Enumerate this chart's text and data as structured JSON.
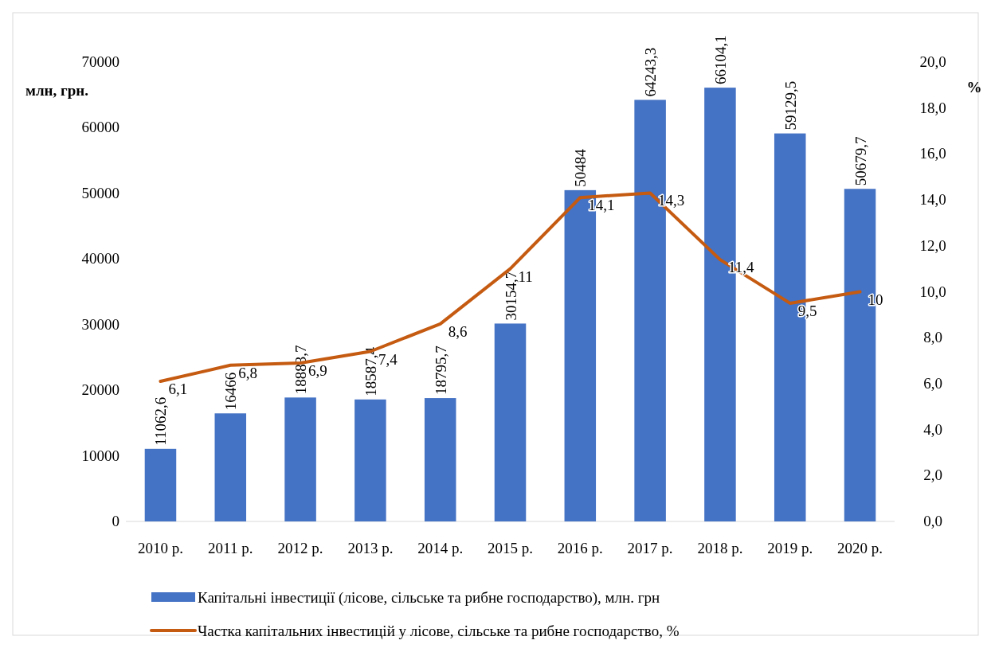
{
  "chart_data": {
    "type": "bar",
    "ylabel": "млн, грн.",
    "y2label": "%",
    "categories": [
      "2010 р.",
      "2011 р.",
      "2012 р.",
      "2013 р.",
      "2014 р.",
      "2015 р.",
      "2016 р.",
      "2017 р.",
      "2018 р.",
      "2019 р.",
      "2020 р."
    ],
    "series": [
      {
        "name": "Капітальні інвестиції (лісове, сільське та рибне господарство), млн. грн",
        "color": "#4472c4",
        "values": [
          11062.6,
          16466,
          18883.7,
          18587.4,
          18795.7,
          30154.7,
          50484,
          64243.3,
          66104.1,
          59129.5,
          50679.7
        ],
        "value_labels": [
          "11062,6",
          "16466",
          "18883,7",
          "18587,4",
          "18795,7",
          "30154,7",
          "50484",
          "64243,3",
          "66104,1",
          "59129,5",
          "50679,7"
        ]
      },
      {
        "name": "Частка капітальних інвестицій у лісове, сільське та рибне господарство, %",
        "type": "line",
        "axis": "y2",
        "color": "#c55a11",
        "values": [
          6.1,
          6.8,
          6.9,
          7.4,
          8.6,
          11,
          14.1,
          14.3,
          11.4,
          9.5,
          10
        ],
        "value_labels": [
          "6,1",
          "6,8",
          "6,9",
          "7,4",
          "8,6",
          "11",
          "14,1",
          "14,3",
          "11,4",
          "9,5",
          "10"
        ]
      }
    ],
    "ylim": [
      0,
      70000
    ],
    "yticks": [
      0,
      10000,
      20000,
      30000,
      40000,
      50000,
      60000,
      70000
    ],
    "y2lim": [
      0,
      20
    ],
    "y2ticks": [
      {
        "value": 0,
        "label": "0,0"
      },
      {
        "value": 2,
        "label": "2,0"
      },
      {
        "value": 4,
        "label": "4,0"
      },
      {
        "value": 6,
        "label": "6,0"
      },
      {
        "value": 8,
        "label": "8,0"
      },
      {
        "value": 10,
        "label": "10,0"
      },
      {
        "value": 12,
        "label": "12,0"
      },
      {
        "value": 14,
        "label": "14,0"
      },
      {
        "value": 16,
        "label": "16,0"
      },
      {
        "value": 18,
        "label": "18,0"
      },
      {
        "value": 20,
        "label": "20,0"
      }
    ],
    "grid": false,
    "legend": "bottom",
    "marker": "none",
    "line_style": "solid"
  }
}
